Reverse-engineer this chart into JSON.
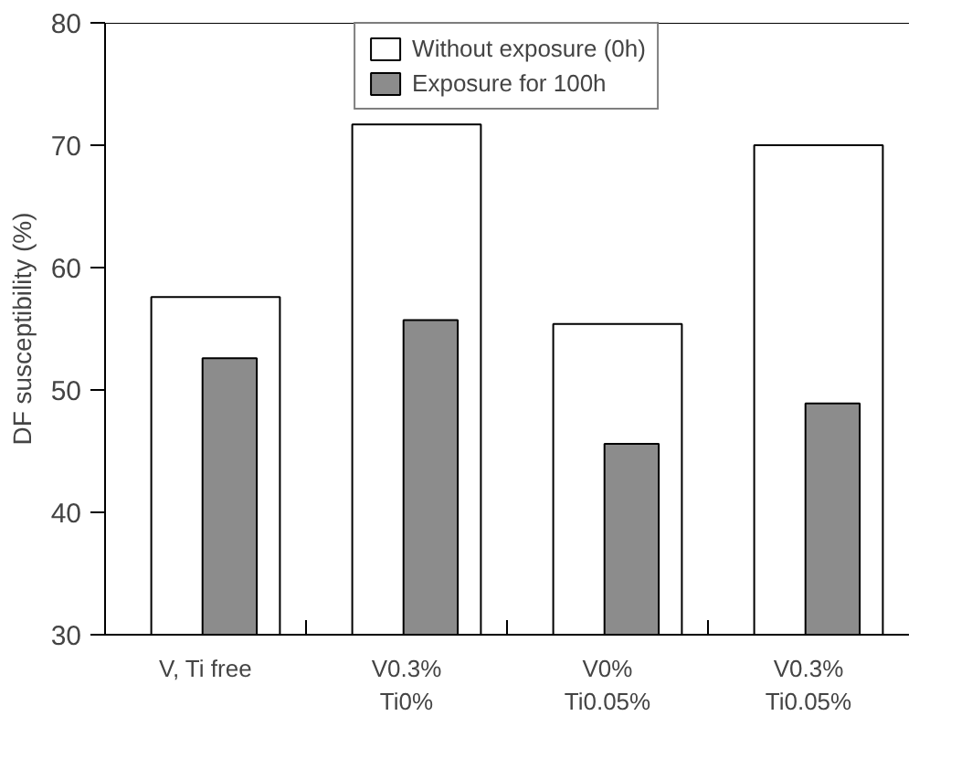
{
  "chart_data": {
    "type": "bar",
    "ylabel": "DF susceptibility (%)",
    "categories": [
      "V, Ti free",
      "V0.3%\nTi0%",
      "V0%\nTi0.05%",
      "V0.3%\nTi0.05%"
    ],
    "series": [
      {
        "name": "Without exposure (0h)",
        "color": "#ffffff",
        "values": [
          57.6,
          71.7,
          55.4,
          70.0
        ]
      },
      {
        "name": "Exposure for 100h",
        "color": "#8c8c8c",
        "values": [
          52.6,
          55.7,
          45.6,
          48.9
        ]
      }
    ],
    "ylim": [
      30,
      80
    ],
    "yticks": [
      30,
      40,
      50,
      60,
      70,
      80
    ],
    "grid": false,
    "legend": "top"
  }
}
